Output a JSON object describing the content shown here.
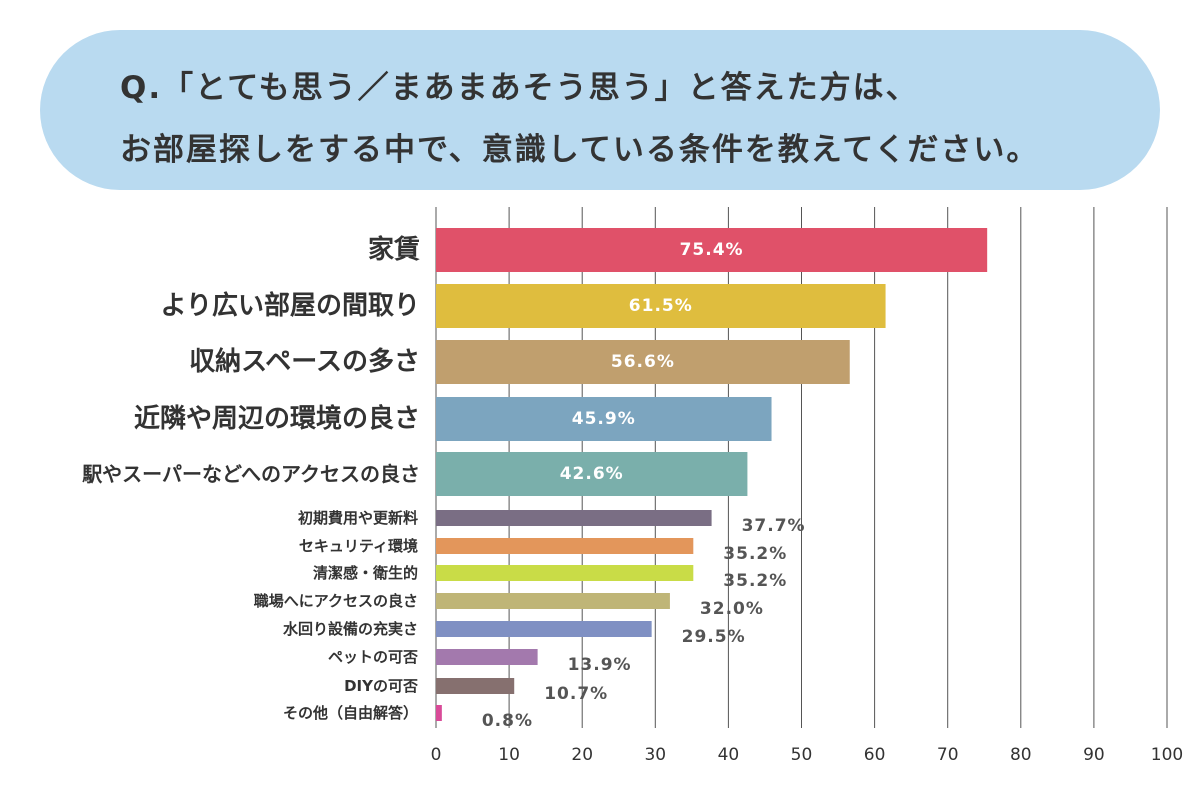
{
  "question": {
    "line1": "Q.「とても思う／まあまあそう思う」と答えた方は、",
    "line2": "お部屋探しをする中で、意識している条件を教えてください。"
  },
  "chart_data": {
    "type": "bar",
    "orientation": "horizontal",
    "categories": [
      "家賃",
      "より広い部屋の間取り",
      "収納スペースの多さ",
      "近隣や周辺の環境の良さ",
      "駅やスーパーなどへのアクセスの良さ",
      "初期費用や更新料",
      "セキュリティ環境",
      "清潔感・衛生的",
      "職場へにアクセスの良さ",
      "水回り設備の充実さ",
      "ペットの可否",
      "DIYの可否",
      "その他（自由解答）"
    ],
    "values": [
      75.4,
      61.5,
      56.6,
      45.9,
      42.6,
      37.7,
      35.2,
      35.2,
      32.0,
      29.5,
      13.9,
      10.7,
      0.8
    ],
    "value_labels": [
      "75.4%",
      "61.5%",
      "56.6%",
      "45.9%",
      "42.6%",
      "37.7%",
      "35.2%",
      "35.2%",
      "32.0%",
      "29.5%",
      "13.9%",
      "10.7%",
      "0.8%"
    ],
    "colors": [
      "#e05169",
      "#dfbd3e",
      "#c09f6e",
      "#7ca5bf",
      "#7aafab",
      "#7a6e84",
      "#e3965b",
      "#c9dc47",
      "#bfb577",
      "#7f90c3",
      "#a379ad",
      "#86706f",
      "#d94a98"
    ],
    "xticks": [
      "0",
      "10",
      "20",
      "30",
      "40",
      "50",
      "60",
      "70",
      "80",
      "90",
      "100"
    ],
    "xlim": [
      0,
      100
    ],
    "grid": true,
    "xlabel": "",
    "ylabel": ""
  }
}
